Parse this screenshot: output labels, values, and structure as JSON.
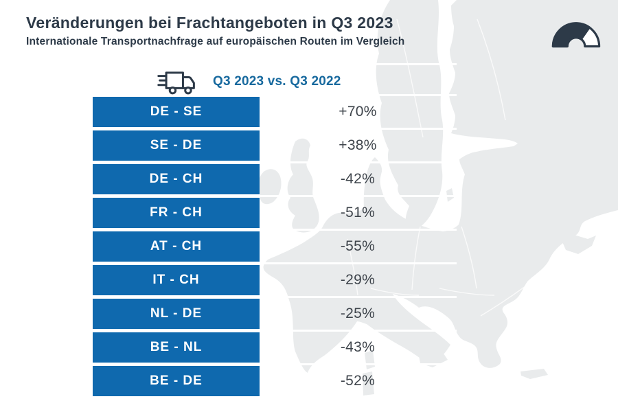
{
  "header": {
    "title": "Veränderungen bei Frachtangeboten in Q3 2023",
    "subtitle": "Internationale Transportnachfrage auf europäischen Routen im Vergleich"
  },
  "comparison": {
    "label": "Q3 2023 vs. Q3 2022",
    "icon": "truck-icon"
  },
  "logo": {
    "icon": "speedometer-gauge-icon"
  },
  "background": {
    "image": "europe-map-silhouette"
  },
  "chart_data": {
    "type": "table",
    "title": "Veränderungen bei Frachtangeboten in Q3 2023",
    "subtitle": "Internationale Transportnachfrage auf europäischen Routen im Vergleich",
    "comparison_label": "Q3 2023 vs. Q3 2022",
    "categories": [
      "DE - SE",
      "SE - DE",
      "DE - CH",
      "FR - CH",
      "AT - CH",
      "IT - CH",
      "NL - DE",
      "BE - NL",
      "BE - DE"
    ],
    "values_percent": [
      70,
      38,
      -42,
      -51,
      -55,
      -29,
      -25,
      -43,
      -52
    ],
    "value_labels": [
      "+70%",
      "+38%",
      "-42%",
      "-51%",
      "-55%",
      "-29%",
      "-25%",
      "-43%",
      "-52%"
    ],
    "layout_hints": {
      "legend": "none",
      "grid": "white row separators over map background"
    }
  },
  "colors": {
    "box_blue": "#0f69ae",
    "header_blue": "#17699e",
    "navy": "#2d3a48",
    "percent_text": "#3e444b",
    "map_gray": "#e9ebec"
  }
}
